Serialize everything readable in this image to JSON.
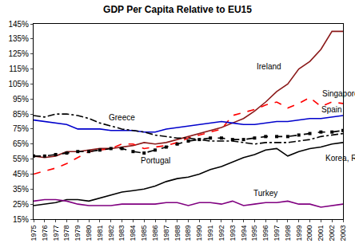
{
  "chart_data": {
    "type": "line",
    "title": "GDP Per Capita Relative to EU15",
    "x": [
      1975,
      1976,
      1977,
      1978,
      1979,
      1980,
      1981,
      1982,
      1983,
      1984,
      1985,
      1986,
      1987,
      1988,
      1989,
      1990,
      1991,
      1992,
      1993,
      1994,
      1995,
      1996,
      1997,
      1998,
      1999,
      2000,
      2001,
      2002,
      2003
    ],
    "xlim": [
      1975,
      2003
    ],
    "xticks": [
      1975,
      1976,
      1977,
      1978,
      1979,
      1980,
      1981,
      1982,
      1983,
      1984,
      1985,
      1986,
      1987,
      1988,
      1989,
      1990,
      1991,
      1992,
      1993,
      1994,
      1995,
      1996,
      1997,
      1998,
      1999,
      2000,
      2001,
      2002,
      2003
    ],
    "ylim": [
      15,
      145
    ],
    "yticks": [
      {
        "value": 15,
        "label": "15%"
      },
      {
        "value": 25,
        "label": "25%"
      },
      {
        "value": 35,
        "label": "35%"
      },
      {
        "value": 45,
        "label": "45%"
      },
      {
        "value": 55,
        "label": "55%"
      },
      {
        "value": 65,
        "label": "65%"
      },
      {
        "value": 75,
        "label": "75%"
      },
      {
        "value": 85,
        "label": "85%"
      },
      {
        "value": 95,
        "label": "95%"
      },
      {
        "value": 105,
        "label": "105%"
      },
      {
        "value": 115,
        "label": "115%"
      },
      {
        "value": 125,
        "label": "125%"
      },
      {
        "value": 135,
        "label": "135%"
      },
      {
        "value": 145,
        "label": "145%"
      }
    ],
    "grid": false,
    "series": [
      {
        "name": "Ireland",
        "color": "#8b1a1a",
        "line_style": "solid",
        "values": [
          57,
          56,
          57,
          60,
          60,
          61,
          62,
          62,
          63,
          64,
          66,
          65,
          66,
          68,
          70,
          72,
          74,
          76,
          79,
          82,
          87,
          93,
          100,
          105,
          115,
          120,
          128,
          140,
          140
        ]
      },
      {
        "name": "Singapore",
        "color": "#ff0000",
        "line_style": "dash",
        "values": [
          45,
          47,
          49,
          52,
          56,
          60,
          61,
          62,
          65,
          65,
          62,
          63,
          64,
          66,
          69,
          71,
          73,
          75,
          84,
          86,
          88,
          91,
          93,
          89,
          92,
          96,
          90,
          93,
          92
        ]
      },
      {
        "name": "Spain",
        "color": "#0000cc",
        "line_style": "solid",
        "values": [
          81,
          80,
          79,
          78,
          75,
          75,
          75,
          74,
          74,
          74,
          73,
          73,
          75,
          76,
          77,
          78,
          79,
          80,
          79,
          78,
          78,
          79,
          80,
          80,
          81,
          82,
          82,
          83,
          84
        ]
      },
      {
        "name": "Greece",
        "color": "#000000",
        "line_style": "dashdot",
        "values": [
          84,
          83,
          85,
          85,
          84,
          82,
          79,
          77,
          75,
          74,
          73,
          71,
          70,
          69,
          69,
          68,
          67,
          67,
          67,
          66,
          65,
          66,
          66,
          66,
          67,
          68,
          70,
          71,
          72
        ]
      },
      {
        "name": "Portugal",
        "color": "#000000",
        "line_style": "dash",
        "marker": "square",
        "values": [
          57,
          57,
          58,
          59,
          60,
          60,
          61,
          62,
          62,
          60,
          59,
          61,
          63,
          65,
          67,
          68,
          69,
          69,
          68,
          68,
          69,
          70,
          70,
          70,
          71,
          72,
          73,
          73,
          74
        ]
      },
      {
        "name": "Korea, Rep.",
        "color": "#000000",
        "line_style": "solid",
        "values": [
          24,
          25,
          26,
          28,
          28,
          27,
          29,
          31,
          33,
          34,
          35,
          37,
          40,
          42,
          43,
          45,
          48,
          50,
          53,
          56,
          58,
          61,
          62,
          57,
          60,
          62,
          63,
          65,
          66
        ]
      },
      {
        "name": "Turkey",
        "color": "#800080",
        "line_style": "solid",
        "values": [
          27,
          28,
          28,
          27,
          25,
          24,
          24,
          24,
          25,
          25,
          25,
          25,
          26,
          26,
          24,
          26,
          26,
          25,
          27,
          24,
          25,
          26,
          26,
          27,
          25,
          25,
          23,
          24,
          25
        ]
      }
    ]
  }
}
